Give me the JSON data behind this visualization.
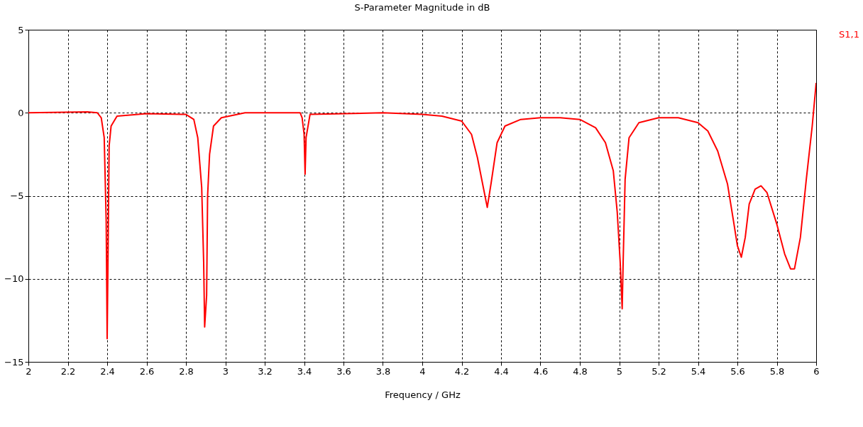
{
  "chart_data": {
    "type": "line",
    "title": "S-Parameter Magnitude in dB",
    "xlabel": "Frequency / GHz",
    "x": [
      2.0,
      2.3,
      2.35,
      2.37,
      2.385,
      2.395,
      2.4,
      2.405,
      2.41,
      2.42,
      2.45,
      2.6,
      2.8,
      2.84,
      2.86,
      2.88,
      2.89,
      2.895,
      2.905,
      2.91,
      2.92,
      2.94,
      2.98,
      3.1,
      3.38,
      3.39,
      3.4,
      3.405,
      3.41,
      3.43,
      3.8,
      4.0,
      4.1,
      4.2,
      4.25,
      4.28,
      4.31,
      4.33,
      4.35,
      4.38,
      4.42,
      4.5,
      4.6,
      4.7,
      4.8,
      4.88,
      4.93,
      4.97,
      4.99,
      5.005,
      5.015,
      5.02,
      5.03,
      5.05,
      5.1,
      5.2,
      5.3,
      5.4,
      5.45,
      5.5,
      5.55,
      5.58,
      5.6,
      5.62,
      5.64,
      5.66,
      5.69,
      5.72,
      5.75,
      5.8,
      5.84,
      5.87,
      5.89,
      5.92,
      5.95,
      5.98,
      6.0
    ],
    "series": [
      {
        "name": "S1,1",
        "color": "#ff0000",
        "values": [
          0,
          0.05,
          0,
          -0.3,
          -1.5,
          -6.5,
          -13.6,
          -8,
          -2,
          -0.8,
          -0.2,
          -0.05,
          -0.1,
          -0.4,
          -1.5,
          -4.5,
          -9,
          -12.9,
          -11,
          -5,
          -2.5,
          -0.8,
          -0.3,
          0,
          0,
          -0.3,
          -1.3,
          -3.7,
          -1.5,
          -0.1,
          0,
          -0.1,
          -0.2,
          -0.5,
          -1.3,
          -2.7,
          -4.5,
          -5.7,
          -4.2,
          -1.8,
          -0.8,
          -0.4,
          -0.3,
          -0.3,
          -0.4,
          -0.9,
          -1.8,
          -3.5,
          -6,
          -9,
          -11.8,
          -9,
          -4,
          -1.5,
          -0.6,
          -0.3,
          -0.3,
          -0.6,
          -1.1,
          -2.3,
          -4.3,
          -6.5,
          -8,
          -8.7,
          -7.5,
          -5.5,
          -4.6,
          -4.4,
          -4.8,
          -6.7,
          -8.5,
          -9.4,
          -9.4,
          -7.5,
          -4,
          -0.8,
          1.8
        ]
      }
    ],
    "xlim": [
      2,
      6
    ],
    "xticks": [
      2,
      2.2,
      2.4,
      2.6,
      2.8,
      3,
      3.2,
      3.4,
      3.6,
      3.8,
      4,
      4.2,
      4.4,
      4.6,
      4.8,
      5,
      5.2,
      5.4,
      5.6,
      5.8,
      6
    ],
    "ylim": [
      -15,
      5
    ],
    "yticks": [
      -15,
      -10,
      -5,
      0,
      5
    ],
    "grid": true,
    "legend": "top right",
    "marker": "none",
    "line_style": "solid"
  }
}
